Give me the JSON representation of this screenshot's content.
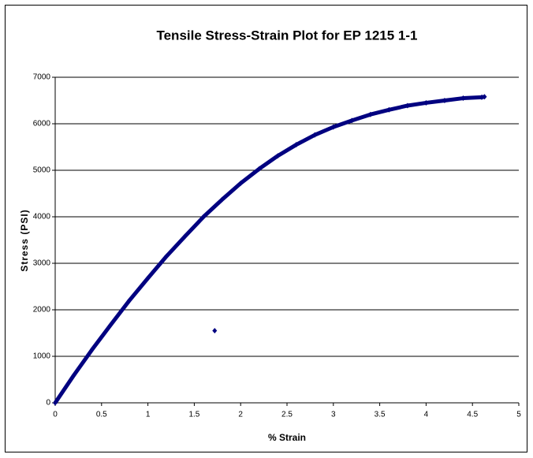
{
  "chart_data": {
    "type": "scatter",
    "title": "Tensile Stress-Strain Plot for EP 1215 1-1",
    "x_label": "% Strain",
    "y_label": "Stress (PSI)",
    "series": [
      {
        "color": "#000080",
        "x": [
          0,
          0.2,
          0.4,
          0.6,
          0.8,
          1.0,
          1.2,
          1.4,
          1.6,
          1.8,
          2.0,
          2.2,
          2.4,
          2.6,
          2.8,
          3.0,
          3.2,
          3.4,
          3.6,
          3.8,
          4.0,
          4.2,
          4.4,
          4.6,
          4.63
        ],
        "values": [
          0,
          590,
          1150,
          1680,
          2200,
          2680,
          3150,
          3580,
          4000,
          4370,
          4720,
          5030,
          5310,
          5550,
          5760,
          5930,
          6070,
          6200,
          6300,
          6390,
          6450,
          6500,
          6550,
          6570,
          6580
        ]
      },
      {
        "color": "#000080",
        "x": [
          1.72
        ],
        "values": [
          1550
        ]
      }
    ],
    "xlim": [
      0,
      5
    ],
    "xticks": [
      0,
      0.5,
      1,
      1.5,
      2,
      2.5,
      3,
      3.5,
      4,
      4.5,
      5
    ],
    "ylim": [
      0,
      7000
    ],
    "yticks": [
      0,
      1000,
      2000,
      3000,
      4000,
      5000,
      6000,
      7000
    ],
    "grid": true
  }
}
